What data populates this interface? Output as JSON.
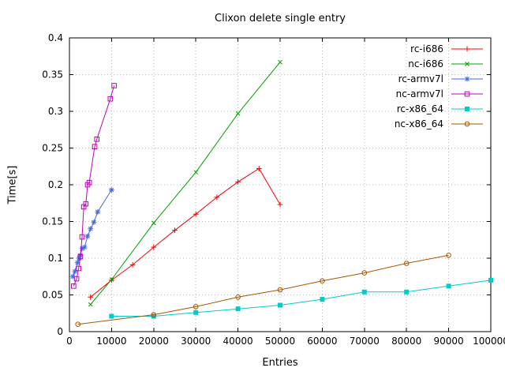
{
  "chart_data": {
    "type": "line",
    "title": "Clixon delete single entry",
    "xlabel": "Entries",
    "ylabel": "Time[s]",
    "xlim": [
      0,
      100000
    ],
    "ylim": [
      0,
      0.4
    ],
    "xticks": [
      0,
      10000,
      20000,
      30000,
      40000,
      50000,
      60000,
      70000,
      80000,
      90000,
      100000
    ],
    "xtick_labels": [
      "0",
      "10000",
      "20000",
      "30000",
      "40000",
      "50000",
      "60000",
      "70000",
      "80000",
      "90000",
      "100000"
    ],
    "yticks": [
      0,
      0.05,
      0.1,
      0.15,
      0.2,
      0.25,
      0.3,
      0.35,
      0.4
    ],
    "ytick_labels": [
      "0",
      "0.05",
      "0.1",
      "0.15",
      "0.2",
      "0.25",
      "0.3",
      "0.35",
      "0.4"
    ],
    "grid": true,
    "legend_position": "top-right",
    "series": [
      {
        "name": "rc-i686",
        "color": "#ff0000",
        "marker": "plus",
        "points": [
          [
            5000,
            0.047
          ],
          [
            10000,
            0.07
          ],
          [
            15000,
            0.091
          ],
          [
            20000,
            0.115
          ],
          [
            25000,
            0.138
          ],
          [
            30000,
            0.16
          ],
          [
            35000,
            0.183
          ],
          [
            40000,
            0.204
          ],
          [
            45000,
            0.222
          ],
          [
            50000,
            0.173
          ]
        ]
      },
      {
        "name": "nc-i686",
        "color": "#00a000",
        "marker": "cross",
        "points": [
          [
            5000,
            0.037
          ],
          [
            10000,
            0.071
          ],
          [
            20000,
            0.148
          ],
          [
            30000,
            0.217
          ],
          [
            40000,
            0.297
          ],
          [
            50000,
            0.367
          ]
        ]
      },
      {
        "name": "rc-armv7l",
        "color": "#4169e1",
        "marker": "asterisk",
        "points": [
          [
            800,
            0.075
          ],
          [
            1300,
            0.082
          ],
          [
            1900,
            0.094
          ],
          [
            2300,
            0.1
          ],
          [
            2600,
            0.104
          ],
          [
            3000,
            0.113
          ],
          [
            3600,
            0.115
          ],
          [
            4300,
            0.13
          ],
          [
            5000,
            0.14
          ],
          [
            5800,
            0.149
          ],
          [
            6700,
            0.163
          ],
          [
            10000,
            0.193
          ]
        ]
      },
      {
        "name": "nc-armv7l",
        "color": "#c000c0",
        "marker": "square-open",
        "points": [
          [
            1000,
            0.062
          ],
          [
            1700,
            0.072
          ],
          [
            2200,
            0.086
          ],
          [
            2600,
            0.102
          ],
          [
            3000,
            0.129
          ],
          [
            3400,
            0.17
          ],
          [
            3900,
            0.174
          ],
          [
            4300,
            0.2
          ],
          [
            4700,
            0.203
          ],
          [
            6000,
            0.252
          ],
          [
            6500,
            0.262
          ],
          [
            9700,
            0.317
          ],
          [
            10600,
            0.335
          ]
        ]
      },
      {
        "name": "rc-x86_64",
        "color": "#00cccc",
        "marker": "square-filled",
        "points": [
          [
            10000,
            0.021
          ],
          [
            20000,
            0.021
          ],
          [
            30000,
            0.026
          ],
          [
            40000,
            0.031
          ],
          [
            50000,
            0.036
          ],
          [
            60000,
            0.044
          ],
          [
            70000,
            0.054
          ],
          [
            80000,
            0.054
          ],
          [
            90000,
            0.062
          ],
          [
            100000,
            0.07
          ]
        ]
      },
      {
        "name": "nc-x86_64",
        "color": "#aa5500",
        "marker": "circle-open",
        "points": [
          [
            2000,
            0.01
          ],
          [
            20000,
            0.023
          ],
          [
            30000,
            0.034
          ],
          [
            40000,
            0.047
          ],
          [
            50000,
            0.057
          ],
          [
            60000,
            0.069
          ],
          [
            70000,
            0.08
          ],
          [
            80000,
            0.093
          ],
          [
            90000,
            0.104
          ]
        ]
      }
    ]
  }
}
